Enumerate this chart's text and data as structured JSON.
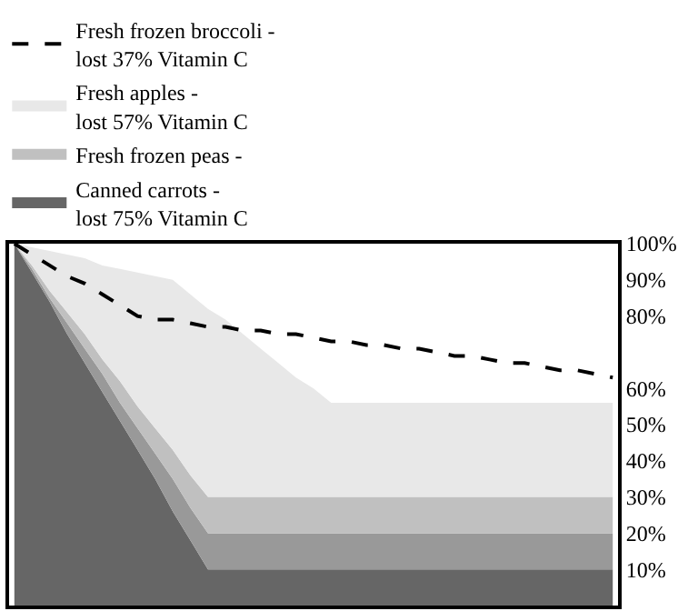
{
  "chart_data": {
    "type": "area",
    "categories": [
      null,
      null,
      null,
      null,
      null,
      null,
      null,
      null,
      null,
      null,
      null,
      null,
      null,
      null,
      null,
      null,
      null,
      null,
      null,
      null,
      null,
      null,
      null,
      null,
      null,
      null,
      null,
      null,
      null,
      null,
      null,
      null,
      null,
      null,
      null
    ],
    "series": [
      {
        "name": "Fresh frozen broccoli -\nlost 37% Vitamin C",
        "type": "line",
        "line_style": "dashed",
        "color": "#000000",
        "values": [
          100,
          97,
          94,
          91,
          89,
          86,
          83,
          80,
          79,
          79,
          78,
          77,
          77,
          76,
          76,
          75,
          75,
          74,
          73,
          73,
          72,
          72,
          71,
          71,
          70,
          69,
          69,
          68,
          67,
          67,
          66,
          65,
          65,
          64,
          63
        ]
      },
      {
        "name": "Canned carrots -\nlost 75% Vitamin C",
        "color": "#666666",
        "values": [
          100,
          92,
          84,
          75,
          67,
          59,
          51,
          43,
          35,
          26,
          18,
          10,
          10,
          10,
          10,
          10,
          10,
          10,
          10,
          10,
          10,
          10,
          10,
          10,
          10,
          10,
          10,
          10,
          10,
          10,
          10,
          10,
          10,
          10,
          10
        ]
      },
      {
        "color": "#999999",
        "values": [
          0,
          1,
          1,
          3,
          4,
          5,
          5,
          6,
          7,
          9,
          9,
          10,
          10,
          10,
          10,
          10,
          10,
          10,
          10,
          10,
          10,
          10,
          10,
          10,
          10,
          10,
          10,
          10,
          10,
          10,
          10,
          10,
          10,
          10,
          10
        ]
      },
      {
        "name": "Fresh frozen peas -",
        "color": "#c0c0c0",
        "values": [
          0,
          1,
          2,
          3,
          4,
          4,
          6,
          6,
          7,
          8,
          9,
          10,
          10,
          10,
          10,
          10,
          10,
          10,
          10,
          10,
          10,
          10,
          10,
          10,
          10,
          10,
          10,
          10,
          10,
          10,
          10,
          10,
          10,
          10,
          10
        ]
      },
      {
        "name": "Fresh apples -\nlost 57% Vitamin C",
        "color": "#e8e8e8",
        "values": [
          0,
          5,
          11,
          16,
          21,
          26,
          31,
          37,
          42,
          47,
          50,
          52,
          49,
          45,
          41,
          37,
          33,
          30,
          26,
          26,
          26,
          26,
          26,
          26,
          26,
          26,
          26,
          26,
          26,
          26,
          26,
          26,
          26,
          26,
          26
        ]
      }
    ],
    "ylim": [
      0,
      100
    ],
    "yticks": [
      {
        "value": 10,
        "label": "10%"
      },
      {
        "value": 20,
        "label": "20%"
      },
      {
        "value": 30,
        "label": "30%"
      },
      {
        "value": 40,
        "label": "40%"
      },
      {
        "value": 50,
        "label": "50%"
      },
      {
        "value": 60,
        "label": "60%"
      },
      {
        "value": 80,
        "label": "80%"
      },
      {
        "value": 90,
        "label": "90%"
      },
      {
        "value": 100,
        "label": "100%"
      }
    ],
    "tick_labels": "y",
    "stacked": true,
    "legend": "top left",
    "marker": "none"
  }
}
